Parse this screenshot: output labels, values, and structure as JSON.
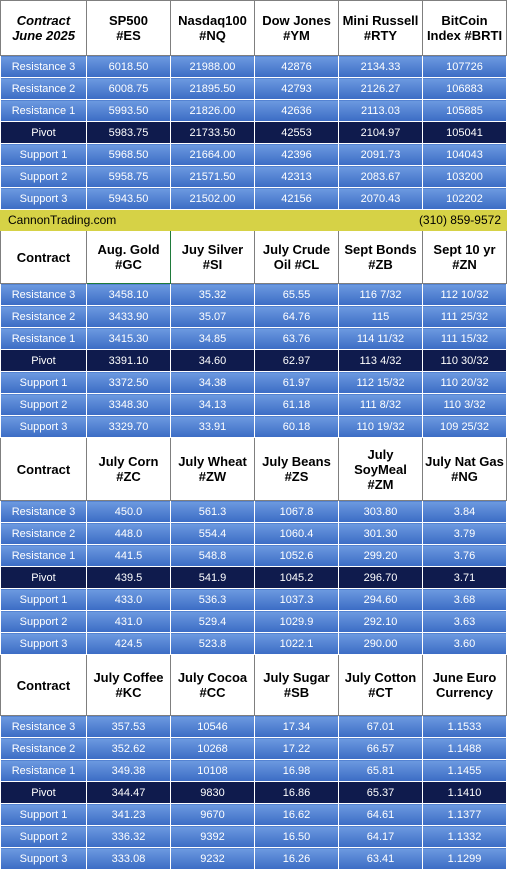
{
  "sections": [
    {
      "corner": "Contract\nJune 2025",
      "italic": true,
      "selected_col": -1,
      "columns": [
        "SP500\n#ES",
        "Nasdaq100\n#NQ",
        "Dow Jones\n#YM",
        "Mini Russell\n#RTY",
        "BitCoin\nIndex #BRTI"
      ],
      "rows": [
        {
          "label": "Resistance 3",
          "values": [
            "6018.50",
            "21988.00",
            "42876",
            "2134.33",
            "107726"
          ]
        },
        {
          "label": "Resistance 2",
          "values": [
            "6008.75",
            "21895.50",
            "42793",
            "2126.27",
            "106883"
          ]
        },
        {
          "label": "Resistance 1",
          "values": [
            "5993.50",
            "21826.00",
            "42636",
            "2113.03",
            "105885"
          ]
        },
        {
          "label": "Pivot",
          "values": [
            "5983.75",
            "21733.50",
            "42553",
            "2104.97",
            "105041"
          ]
        },
        {
          "label": "Support 1",
          "values": [
            "5968.50",
            "21664.00",
            "42396",
            "2091.73",
            "104043"
          ]
        },
        {
          "label": "Support 2",
          "values": [
            "5958.75",
            "21571.50",
            "42313",
            "2083.67",
            "103200"
          ]
        },
        {
          "label": "Support 3",
          "values": [
            "5943.50",
            "21502.00",
            "42156",
            "2070.43",
            "102202"
          ]
        }
      ]
    },
    {
      "corner": "Contract",
      "italic": false,
      "selected_col": 0,
      "columns": [
        "Aug. Gold\n#GC",
        "Juy Silver\n#SI",
        "July Crude\nOil #CL",
        "Sept Bonds\n#ZB",
        "Sept 10 yr\n#ZN"
      ],
      "rows": [
        {
          "label": "Resistance 3",
          "values": [
            "3458.10",
            "35.32",
            "65.55",
            "116  7/32",
            "112 10/32"
          ]
        },
        {
          "label": "Resistance 2",
          "values": [
            "3433.90",
            "35.07",
            "64.76",
            "115",
            "111 25/32"
          ]
        },
        {
          "label": "Resistance 1",
          "values": [
            "3415.30",
            "34.85",
            "63.76",
            "114 11/32",
            "111 15/32"
          ]
        },
        {
          "label": "Pivot",
          "values": [
            "3391.10",
            "34.60",
            "62.97",
            "113  4/32",
            "110 30/32"
          ]
        },
        {
          "label": "Support 1",
          "values": [
            "3372.50",
            "34.38",
            "61.97",
            "112 15/32",
            "110 20/32"
          ]
        },
        {
          "label": "Support 2",
          "values": [
            "3348.30",
            "34.13",
            "61.18",
            "111  8/32",
            "110  3/32"
          ]
        },
        {
          "label": "Support 3",
          "values": [
            "3329.70",
            "33.91",
            "60.18",
            "110 19/32",
            "109 25/32"
          ]
        }
      ]
    },
    {
      "corner": "Contract",
      "italic": false,
      "selected_col": -1,
      "columns": [
        "July Corn\n#ZC",
        "July  Wheat\n#ZW",
        "July Beans\n#ZS",
        "July\nSoyMeal\n#ZM",
        "July Nat Gas\n#NG"
      ],
      "rows": [
        {
          "label": "Resistance 3",
          "values": [
            "450.0",
            "561.3",
            "1067.8",
            "303.80",
            "3.84"
          ]
        },
        {
          "label": "Resistance 2",
          "values": [
            "448.0",
            "554.4",
            "1060.4",
            "301.30",
            "3.79"
          ]
        },
        {
          "label": "Resistance 1",
          "values": [
            "441.5",
            "548.8",
            "1052.6",
            "299.20",
            "3.76"
          ]
        },
        {
          "label": "Pivot",
          "values": [
            "439.5",
            "541.9",
            "1045.2",
            "296.70",
            "3.71"
          ]
        },
        {
          "label": "Support 1",
          "values": [
            "433.0",
            "536.3",
            "1037.3",
            "294.60",
            "3.68"
          ]
        },
        {
          "label": "Support 2",
          "values": [
            "431.0",
            "529.4",
            "1029.9",
            "292.10",
            "3.63"
          ]
        },
        {
          "label": "Support 3",
          "values": [
            "424.5",
            "523.8",
            "1022.1",
            "290.00",
            "3.60"
          ]
        }
      ]
    },
    {
      "corner": "Contract",
      "italic": false,
      "selected_col": -1,
      "columns": [
        "July Coffee\n#KC",
        "July Cocoa\n#CC",
        "July Sugar\n#SB",
        "July Cotton\n#CT",
        "June Euro\nCurrency"
      ],
      "rows": [
        {
          "label": "Resistance 3",
          "values": [
            "357.53",
            "10546",
            "17.34",
            "67.01",
            "1.1533"
          ]
        },
        {
          "label": "Resistance 2",
          "values": [
            "352.62",
            "10268",
            "17.22",
            "66.57",
            "1.1488"
          ]
        },
        {
          "label": "Resistance 1",
          "values": [
            "349.38",
            "10108",
            "16.98",
            "65.81",
            "1.1455"
          ]
        },
        {
          "label": "Pivot",
          "values": [
            "344.47",
            "9830",
            "16.86",
            "65.37",
            "1.1410"
          ]
        },
        {
          "label": "Support 1",
          "values": [
            "341.23",
            "9670",
            "16.62",
            "64.61",
            "1.1377"
          ]
        },
        {
          "label": "Support 2",
          "values": [
            "336.32",
            "9392",
            "16.50",
            "64.17",
            "1.1332"
          ]
        },
        {
          "label": "Support 3",
          "values": [
            "333.08",
            "9232",
            "16.26",
            "63.41",
            "1.1299"
          ]
        }
      ]
    }
  ],
  "banner": {
    "left": "CannonTrading.com",
    "right": "(310) 859-9572"
  },
  "colors": {
    "row_light": "#6d9ae0",
    "row_dark": "#3b6cc4",
    "pivot": "#0f1b4d",
    "banner": "#d6d246",
    "selection": "#1f7a3a"
  }
}
